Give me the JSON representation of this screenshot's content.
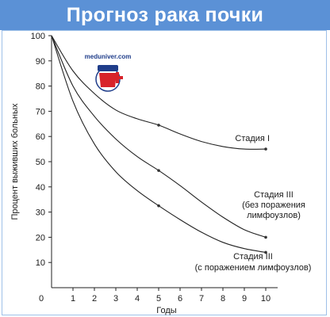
{
  "banner": {
    "title": "Прогноз рака почки"
  },
  "watermark": {
    "text": "meduniver.com"
  },
  "colors": {
    "banner": "#5b91d6",
    "line": "#222222",
    "point": "#333333"
  },
  "chart_data": {
    "type": "line",
    "xlabel": "Годы",
    "ylabel": "Процент выживших больных",
    "xlim": [
      0,
      10
    ],
    "ylim": [
      0,
      100
    ],
    "xticks": [
      0,
      1,
      2,
      3,
      4,
      5,
      6,
      7,
      8,
      9,
      10
    ],
    "yticks": [
      10,
      20,
      30,
      40,
      50,
      60,
      70,
      80,
      90,
      100
    ],
    "yorigin_label": "0",
    "grid": false,
    "series": [
      {
        "annotation": [
          "Стадия I"
        ],
        "curve": [
          [
            0,
            100
          ],
          [
            1,
            86
          ],
          [
            2,
            77
          ],
          [
            3,
            70.5
          ],
          [
            4,
            67
          ],
          [
            5,
            64.5
          ],
          [
            6,
            61
          ],
          [
            7,
            58
          ],
          [
            8,
            56
          ],
          [
            9,
            55
          ],
          [
            10,
            55
          ]
        ],
        "points": [
          [
            5,
            64.5
          ],
          [
            10,
            55
          ]
        ]
      },
      {
        "annotation": [
          "Стадия III",
          "(без поражения",
          "лимфоузлов)"
        ],
        "curve": [
          [
            0,
            100
          ],
          [
            1,
            80
          ],
          [
            2,
            68
          ],
          [
            3,
            59
          ],
          [
            4,
            52
          ],
          [
            5,
            46.5
          ],
          [
            6,
            40.5
          ],
          [
            7,
            34
          ],
          [
            8,
            28
          ],
          [
            9,
            23
          ],
          [
            10,
            20
          ]
        ],
        "points": [
          [
            5,
            46.5
          ],
          [
            10,
            20
          ]
        ]
      },
      {
        "annotation": [
          "Стадия III",
          "(с поражением лимфоузлов)"
        ],
        "curve": [
          [
            0,
            100
          ],
          [
            1,
            74
          ],
          [
            2,
            57
          ],
          [
            3,
            46
          ],
          [
            4,
            38.5
          ],
          [
            5,
            32.5
          ],
          [
            6,
            27
          ],
          [
            7,
            22
          ],
          [
            8,
            18
          ],
          [
            9,
            15.5
          ],
          [
            10,
            14
          ]
        ],
        "points": [
          [
            5,
            32.5
          ],
          [
            10,
            14
          ]
        ]
      }
    ]
  }
}
